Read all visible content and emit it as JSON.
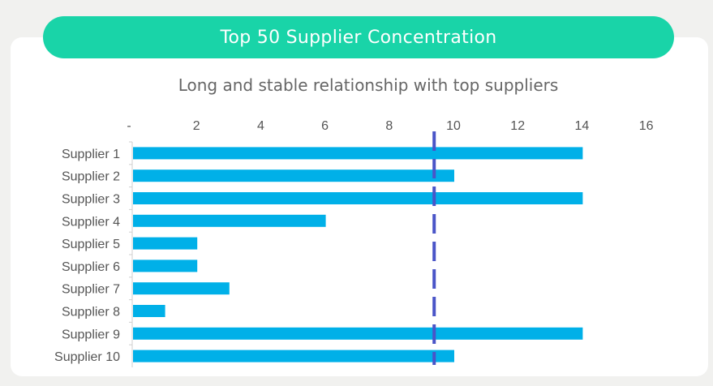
{
  "header": {
    "title": "Top 50 Supplier Concentration"
  },
  "subtitle": "Long and stable relationship with top suppliers",
  "colors": {
    "banner": "#19d4a8",
    "bar": "#00b0e8",
    "reference_line": "#4a55c8"
  },
  "chart_data": {
    "type": "bar",
    "orientation": "horizontal",
    "categories": [
      "Supplier 1",
      "Supplier 2",
      "Supplier 3",
      "Supplier 4",
      "Supplier 5",
      "Supplier 6",
      "Supplier 7",
      "Supplier 8",
      "Supplier 9",
      "Supplier 10"
    ],
    "values": [
      14,
      10,
      14,
      6,
      2,
      2,
      3,
      1,
      14,
      10
    ],
    "xlim": [
      0,
      16
    ],
    "x_ticks": [
      0,
      2,
      4,
      6,
      8,
      10,
      12,
      14,
      16
    ],
    "x_tick_labels": [
      "-",
      "2",
      "4",
      "6",
      "8",
      "10",
      "12",
      "14",
      "16"
    ],
    "x_axis_position": "top",
    "reference_line": {
      "value": 9.4,
      "style": "dashed"
    },
    "grid": false,
    "legend": "none"
  }
}
